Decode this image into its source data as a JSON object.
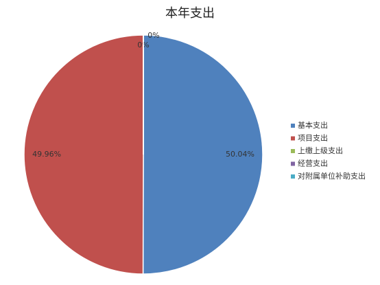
{
  "chart_data": {
    "type": "pie",
    "title": "本年支出",
    "categories": [
      "基本支出",
      "项目支出",
      "上缴上级支出",
      "经营支出",
      "对附属单位补助支出"
    ],
    "values": [
      50.04,
      49.96,
      0,
      0,
      0
    ],
    "value_labels": [
      "50.04%",
      "49.96%",
      "0%",
      "0%",
      null
    ],
    "colors": [
      "#4f81bd",
      "#c0504d",
      "#9bbb59",
      "#8064a2",
      "#4bacc6"
    ],
    "legend": "right"
  }
}
